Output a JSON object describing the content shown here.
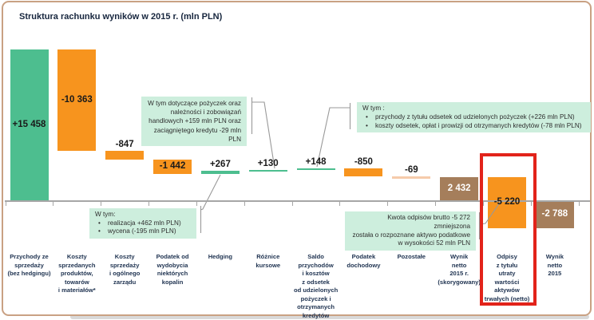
{
  "title": "Struktura rachunku wyników w 2015 r. (mln PLN)",
  "chart_data": {
    "type": "bar",
    "subtype": "waterfall",
    "unit": "mln PLN",
    "title": "Struktura rachunku wyników w 2015 r. (mln PLN)",
    "baseline_value": 0,
    "categories": [
      "Przychody ze sprzedaży (bez hedgingu)",
      "Koszty sprzedanych produktów, towarów i materiałów*",
      "Koszty sprzedaży i ogólnego zarządu",
      "Podatek od wydobycia niektórych kopalin",
      "Hedging",
      "Różnice kursowe",
      "Saldo przychodów i kosztów z odsetek od udzielonych pożyczek i otrzymanych kredytów",
      "Podatek dochodowy",
      "Pozostałe",
      "Wynik netto 2015 r. (skorygowany)",
      "Odpisy z tytułu utraty wartości aktywów trwałych (netto)",
      "Wynik netto 2015"
    ],
    "values": [
      15458,
      -10363,
      -847,
      -1442,
      267,
      130,
      148,
      -850,
      -69,
      2432,
      -5220,
      -2788
    ],
    "bars": [
      {
        "id": "przychody-ze-sprzedazy",
        "label": "Przychody ze\nsprzedaży\n(bez hedgingu)",
        "value": 15458,
        "display": "+15 458",
        "kind": "total",
        "color": "green",
        "label_style": "inside-dark"
      },
      {
        "id": "koszty-sprzedanych",
        "label": "Koszty\nsprzedanych\nproduktów,\ntowarów\ni materiałów*",
        "value": -10363,
        "display": "-10 363",
        "kind": "delta",
        "color": "orange",
        "label_style": "inside-dark"
      },
      {
        "id": "koszty-sprzedazy",
        "label": "Koszty\nsprzedaży\ni ogólnego\nzarządu",
        "value": -847,
        "display": "-847",
        "kind": "delta",
        "color": "orange",
        "label_style": "above"
      },
      {
        "id": "podatek-wydobywczy",
        "label": "Podatek od\nwydobycia\nniektórych\nkopalin",
        "value": -1442,
        "display": "-1 442",
        "kind": "delta",
        "color": "orange",
        "label_style": "inside-dark"
      },
      {
        "id": "hedging",
        "label": "Hedging",
        "value": 267,
        "display": "+267",
        "kind": "delta",
        "color": "green",
        "label_style": "above"
      },
      {
        "id": "roznice-kursowe",
        "label": "Różnice\nkursowe",
        "value": 130,
        "display": "+130",
        "kind": "delta",
        "color": "green",
        "label_style": "above"
      },
      {
        "id": "saldo-odsetek",
        "label": "Saldo\nprzychodów\ni kosztów\nz odsetek\nod udzielonych\npożyczek i\notrzymanych\nkredytów",
        "value": 148,
        "display": "+148",
        "kind": "delta",
        "color": "green",
        "label_style": "above"
      },
      {
        "id": "podatek-dochodowy",
        "label": "Podatek\ndochodowy",
        "value": -850,
        "display": "-850",
        "kind": "delta",
        "color": "orange",
        "label_style": "above"
      },
      {
        "id": "pozostale",
        "label": "Pozostałe",
        "value": -69,
        "display": "-69",
        "kind": "delta",
        "color": "salmon",
        "label_style": "above"
      },
      {
        "id": "wynik-netto-skorygowany",
        "label": "Wynik\nnetto\n2015 r.\n(skorygowany)",
        "value": 2432,
        "display": "2 432",
        "kind": "total",
        "color": "brown",
        "label_style": "inside-light"
      },
      {
        "id": "odpisy",
        "label": "Odpisy\nz tytułu\nutraty\nwartości\naktywów\ntrwałych (netto)",
        "value": -5220,
        "display": "-5 220",
        "kind": "delta",
        "color": "orange",
        "label_style": "inside-dark",
        "highlighted": true
      },
      {
        "id": "wynik-netto-2015",
        "label": "Wynik\nnetto\n2015",
        "value": -2788,
        "display": "-2 788",
        "kind": "total",
        "color": "brown",
        "label_style": "inside-light"
      }
    ],
    "colors": {
      "green": "#4dbe8f",
      "orange": "#f7941e",
      "salmon": "#f6cbab",
      "brown": "#a57e5b",
      "callout_bg": "#cdeedd",
      "highlight": "#e2231a",
      "axis": "#a6a6a6",
      "label_text": "#1e3250"
    },
    "annotations": [
      {
        "id": "fx-differences",
        "target": "Różnice kursowe",
        "align": "right",
        "bullets": false,
        "lines": [
          "W tym dotyczące pożyczek oraz",
          "należności i zobowiązań",
          "handlowych +159 mln PLN oraz",
          "zaciągniętego kredytu -29 mln PLN"
        ]
      },
      {
        "id": "interest-balance",
        "target": "Saldo przychodów i kosztów z odsetek od udzielonych pożyczek i otrzymanych kredytów",
        "align": "left",
        "bullets": true,
        "title": "W tym :",
        "lines": [
          "przychody z tytułu odsetek od udzielonych pożyczek (+226 mln PLN)",
          "koszty odsetek, opłat i prowizji od otrzymanych kredytów (-78 mln PLN)"
        ]
      },
      {
        "id": "hedging-detail",
        "target": "Hedging",
        "align": "left",
        "bullets": true,
        "title": "W tym:",
        "lines": [
          "realizacja +462 mln PLN)",
          "wycena (-195 mln PLN)"
        ]
      },
      {
        "id": "impairment-detail",
        "target": "Odpisy z tytułu utraty wartości aktywów trwałych (netto)",
        "align": "right",
        "bullets": false,
        "lines": [
          "Kwota odpisów brutto -5 272 zmniejszona",
          "została o rozpoznane aktywo podatkowe",
          "w wysokości 52 mln PLN"
        ]
      }
    ],
    "highlight": {
      "category": "Odpisy z tytułu utraty wartości aktywów trwałych (netto)",
      "color": "#e2231a"
    }
  }
}
